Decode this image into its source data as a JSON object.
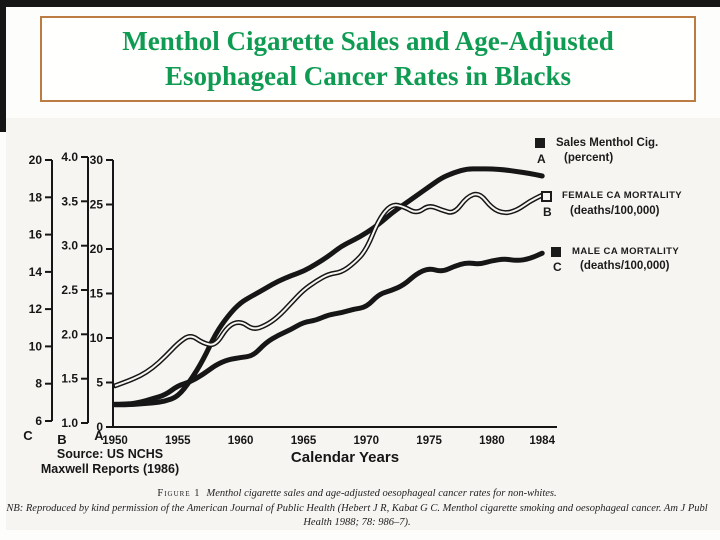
{
  "slide": {
    "title_line1": "Menthol Cigarette Sales and Age-Adjusted",
    "title_line2": "Esophageal Cancer Rates in Blacks"
  },
  "chart_data": {
    "type": "line",
    "xlabel": "Calendar Years",
    "x": [
      1950,
      1951,
      1952,
      1953,
      1954,
      1955,
      1956,
      1957,
      1958,
      1959,
      1960,
      1961,
      1962,
      1963,
      1964,
      1965,
      1966,
      1967,
      1968,
      1969,
      1970,
      1971,
      1972,
      1973,
      1974,
      1975,
      1976,
      1977,
      1978,
      1979,
      1980,
      1981,
      1982,
      1983,
      1984
    ],
    "x_ticks": [
      "1950",
      "1955",
      "1960",
      "1965",
      "1970",
      "1975",
      "1980",
      "1984"
    ],
    "axes": {
      "A": {
        "letter": "A",
        "ticks": [
          "30",
          "25",
          "20",
          "15",
          "10",
          "5",
          "0"
        ],
        "min": 0,
        "max": 30
      },
      "B": {
        "letter": "B",
        "ticks": [
          "4.0",
          "3.5",
          "3.0",
          "2.5",
          "2.0",
          "1.5",
          "1.0"
        ],
        "min": 1.0,
        "max": 4.0
      },
      "C": {
        "letter": "C",
        "ticks": [
          "20",
          "18",
          "16",
          "14",
          "12",
          "10",
          "8",
          "6"
        ],
        "min": 6,
        "max": 20
      }
    },
    "series": [
      {
        "key": "male",
        "name": "MALE CA MORTALITY (deaths/100,000)",
        "axis": "C",
        "style": "thick",
        "values": [
          6.9,
          6.9,
          7.0,
          7.2,
          7.4,
          7.9,
          8.1,
          8.5,
          9.0,
          9.3,
          9.4,
          9.5,
          10.2,
          10.6,
          10.9,
          11.3,
          11.4,
          11.7,
          11.8,
          12.0,
          12.1,
          12.8,
          13.0,
          13.3,
          13.9,
          14.2,
          14.0,
          14.3,
          14.5,
          14.4,
          14.6,
          14.7,
          14.6,
          14.7,
          15.0
        ]
      },
      {
        "key": "sales",
        "name": "Sales Menthol Cig. (percent)",
        "axis": "A",
        "style": "thick",
        "values": [
          2.5,
          2.5,
          2.6,
          2.7,
          2.9,
          3.4,
          5.2,
          7.5,
          10.5,
          12.5,
          14.0,
          14.8,
          15.6,
          16.4,
          17.0,
          17.5,
          18.3,
          19.2,
          20.3,
          21.0,
          21.8,
          22.8,
          24.0,
          25.0,
          26.0,
          27.0,
          28.0,
          28.6,
          29.0,
          29.0,
          29.0,
          28.9,
          28.7,
          28.5,
          28.2
        ]
      },
      {
        "key": "female",
        "name": "FEMALE CA MORTALITY (deaths/100,000)",
        "axis": "B",
        "style": "double",
        "values": [
          1.42,
          1.47,
          1.53,
          1.62,
          1.75,
          1.9,
          2.0,
          1.9,
          1.87,
          2.1,
          2.15,
          2.05,
          2.1,
          2.2,
          2.35,
          2.5,
          2.6,
          2.68,
          2.7,
          2.8,
          2.95,
          3.3,
          3.47,
          3.44,
          3.36,
          3.46,
          3.4,
          3.36,
          3.55,
          3.6,
          3.42,
          3.36,
          3.4,
          3.5,
          3.57
        ]
      }
    ]
  },
  "legend": {
    "a": {
      "marker": "filled-square",
      "line1": "Sales Menthol Cig.",
      "letter": "A",
      "line2": "(percent)"
    },
    "b": {
      "marker": "open-square",
      "line1": "FEMALE CA MORTALITY",
      "letter": "B",
      "line2": "(deaths/100,000)"
    },
    "c": {
      "marker": "filled-square",
      "line1": "MALE CA MORTALITY",
      "letter": "C",
      "line2": "(deaths/100,000)"
    }
  },
  "source": {
    "line1": "Source: US NCHS",
    "line2": "Maxwell Reports (1986)"
  },
  "caption": {
    "figure_label": "Figure 1",
    "figure_text": "Menthol cigarette sales and age-adjusted oesophageal cancer rates for non-whites.",
    "nb_text": "NB: Reproduced by kind permission of the American Journal of Public Health (Hebert J R, Kabat G C. Menthol cigarette smoking and oesophageal cancer. Am J Publ Health 1988; 78: 986–7)."
  },
  "colors": {
    "title_green": "#0f9b52",
    "box_border": "#bc7b40",
    "ink": "#161616",
    "scan_bg": "#f6f5f2"
  }
}
